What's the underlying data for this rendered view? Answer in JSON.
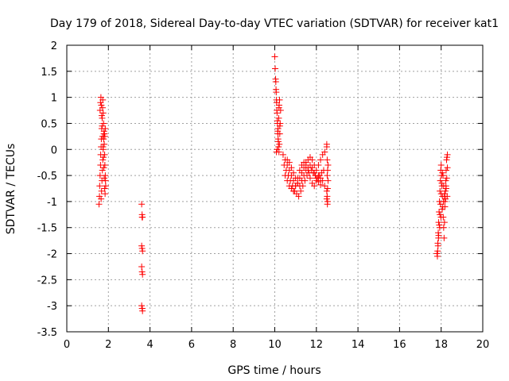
{
  "chart_data": {
    "type": "scatter",
    "title": "Day 179 of 2018, Sidereal Day-to-day VTEC variation (SDTVAR) for receiver kat1",
    "xlabel": "GPS time / hours",
    "ylabel": "SDTVAR / TECUs",
    "xlim": [
      0,
      20
    ],
    "ylim": [
      -3.5,
      2
    ],
    "xticks": [
      0,
      2,
      4,
      6,
      8,
      10,
      12,
      14,
      16,
      18,
      20
    ],
    "xtick_labels": [
      "0",
      "2",
      "4",
      "6",
      "8",
      "10",
      "12",
      "14",
      "16",
      "18",
      "20"
    ],
    "yticks": [
      -3.5,
      -3,
      -2.5,
      -2,
      -1.5,
      -1,
      -0.5,
      0,
      0.5,
      1,
      1.5,
      2
    ],
    "ytick_labels": [
      "-3.5",
      "-3",
      "-2.5",
      "-2",
      "-1.5",
      "-1",
      "-0.5",
      "0",
      "0.5",
      "1",
      "1.5",
      "2"
    ],
    "grid": true,
    "marker": "+",
    "color": "#ff0000",
    "series": [
      {
        "name": "SDTVAR",
        "x": [
          1.55,
          1.57,
          1.58,
          1.6,
          1.62,
          1.63,
          1.65,
          1.66,
          1.68,
          1.7,
          1.72,
          1.73,
          1.75,
          1.77,
          1.78,
          1.8,
          1.82,
          1.83,
          1.85,
          1.87,
          1.6,
          1.62,
          1.64,
          1.66,
          1.68,
          1.7,
          1.72,
          1.74,
          1.76,
          1.78,
          1.8,
          1.82,
          1.84,
          1.86,
          1.65,
          1.67,
          1.69,
          1.71,
          1.73,
          1.75,
          1.77,
          1.79,
          1.81,
          1.83,
          1.85,
          3.6,
          3.62,
          3.64,
          3.6,
          3.62,
          3.64,
          3.6,
          3.62,
          3.64,
          3.6,
          3.62,
          3.64,
          3.62,
          3.63,
          10.0,
          10.02,
          10.04,
          10.06,
          10.08,
          10.1,
          10.12,
          10.14,
          10.16,
          10.18,
          10.2,
          10.22,
          10.24,
          10.26,
          10.05,
          10.07,
          10.09,
          10.11,
          10.13,
          10.15,
          10.17,
          10.19,
          10.21,
          10.23,
          10.08,
          10.12,
          10.16,
          10.2,
          10.24,
          10.28,
          10.4,
          10.5,
          10.6,
          10.7,
          10.8,
          10.9,
          11.0,
          11.1,
          11.2,
          11.3,
          11.4,
          11.5,
          11.6,
          11.7,
          11.8,
          11.9,
          12.0,
          12.1,
          12.2,
          12.3,
          12.4,
          10.45,
          10.55,
          10.65,
          10.75,
          10.85,
          10.95,
          11.05,
          11.15,
          11.25,
          11.35,
          11.45,
          11.55,
          11.65,
          11.75,
          11.85,
          11.95,
          12.05,
          12.15,
          12.25,
          12.35,
          10.5,
          10.6,
          10.7,
          10.8,
          10.9,
          11.0,
          11.1,
          11.2,
          11.3,
          11.4,
          11.5,
          11.6,
          11.7,
          11.8,
          11.9,
          12.0,
          12.1,
          12.2,
          12.3,
          12.4,
          10.6,
          10.7,
          10.8,
          10.9,
          11.0,
          11.1,
          11.2,
          11.3,
          11.4,
          11.5,
          11.6,
          11.7,
          11.8,
          11.9,
          12.0,
          12.1,
          12.2,
          12.5,
          12.52,
          12.54,
          12.56,
          12.5,
          12.52,
          12.54,
          12.56,
          12.5,
          12.52,
          12.54,
          12.5,
          12.53,
          17.8,
          17.82,
          17.84,
          17.86,
          17.88,
          17.9,
          17.92,
          17.94,
          17.96,
          17.98,
          18.0,
          18.02,
          18.04,
          18.06,
          18.08,
          18.1,
          18.12,
          18.14,
          18.16,
          18.18,
          18.2,
          18.22,
          18.24,
          18.26,
          18.28,
          18.3,
          17.85,
          17.88,
          17.91,
          17.94,
          17.97,
          18.0,
          18.03,
          18.06,
          18.09,
          18.12,
          18.15,
          18.18,
          18.21,
          18.24,
          18.27,
          18.3,
          17.83,
          17.87,
          17.93,
          17.99,
          18.05,
          18.11,
          18.17,
          18.23,
          18.29
        ],
        "y": [
          -1.05,
          -0.9,
          -0.7,
          -0.5,
          -0.3,
          -0.1,
          0.05,
          0.2,
          0.4,
          0.6,
          0.8,
          0.95,
          0.7,
          0.5,
          0.3,
          0.1,
          -0.1,
          -0.3,
          -0.5,
          -0.7,
          0.75,
          0.9,
          1.0,
          0.85,
          0.65,
          0.45,
          0.25,
          0.05,
          -0.15,
          -0.35,
          -0.55,
          -0.75,
          -0.85,
          -0.6,
          -0.95,
          -0.8,
          -0.6,
          -0.4,
          -0.2,
          0.0,
          0.2,
          0.35,
          0.3,
          0.25,
          0.4,
          -1.05,
          -1.25,
          -1.3,
          -1.85,
          -1.9,
          -1.95,
          -2.25,
          -2.35,
          -2.4,
          -3.0,
          -3.05,
          -3.1,
          -1.3,
          -3.05,
          1.78,
          1.55,
          1.35,
          1.15,
          0.95,
          0.75,
          0.55,
          0.35,
          0.2,
          0.05,
          -0.05,
          0.1,
          0.3,
          0.5,
          1.3,
          1.1,
          0.9,
          0.7,
          0.5,
          0.3,
          0.15,
          0.6,
          0.85,
          0.95,
          -0.05,
          0.0,
          0.4,
          0.8,
          0.45,
          0.75,
          -0.1,
          -0.2,
          -0.3,
          -0.4,
          -0.5,
          -0.6,
          -0.7,
          -0.65,
          -0.55,
          -0.45,
          -0.35,
          -0.25,
          -0.2,
          -0.15,
          -0.2,
          -0.3,
          -0.4,
          -0.3,
          -0.2,
          -0.1,
          -0.05,
          -0.3,
          -0.4,
          -0.5,
          -0.6,
          -0.7,
          -0.8,
          -0.85,
          -0.9,
          -0.8,
          -0.7,
          -0.6,
          -0.5,
          -0.45,
          -0.4,
          -0.45,
          -0.5,
          -0.55,
          -0.5,
          -0.45,
          -0.4,
          -0.5,
          -0.6,
          -0.7,
          -0.75,
          -0.8,
          -0.7,
          -0.55,
          -0.4,
          -0.3,
          -0.25,
          -0.3,
          -0.4,
          -0.55,
          -0.65,
          -0.7,
          -0.6,
          -0.5,
          -0.55,
          -0.6,
          -0.7,
          -0.2,
          -0.25,
          -0.35,
          -0.45,
          -0.55,
          -0.65,
          -0.7,
          -0.6,
          -0.5,
          -0.4,
          -0.35,
          -0.3,
          -0.35,
          -0.45,
          -0.55,
          -0.62,
          -0.68,
          0.1,
          -0.2,
          -0.4,
          -0.6,
          -0.8,
          -0.9,
          -1.0,
          -0.3,
          0.05,
          -0.5,
          -0.75,
          -0.95,
          -1.05,
          -2.0,
          -2.05,
          -1.8,
          -1.6,
          -1.4,
          -1.2,
          -1.0,
          -0.8,
          -0.6,
          -0.4,
          -0.3,
          -0.5,
          -0.7,
          -0.9,
          -1.1,
          -1.3,
          -1.5,
          -1.7,
          -1.4,
          -1.0,
          -0.8,
          -0.6,
          -0.4,
          -0.2,
          -0.15,
          -0.1,
          -1.85,
          -1.65,
          -1.45,
          -1.25,
          -1.05,
          -0.85,
          -0.65,
          -0.45,
          -0.5,
          -0.7,
          -0.9,
          -1.1,
          -0.95,
          -0.75,
          -0.55,
          -0.35,
          -1.95,
          -1.7,
          -1.5,
          -1.3,
          -1.15,
          -1.0,
          -0.85,
          -0.7,
          -0.9
        ]
      }
    ]
  }
}
